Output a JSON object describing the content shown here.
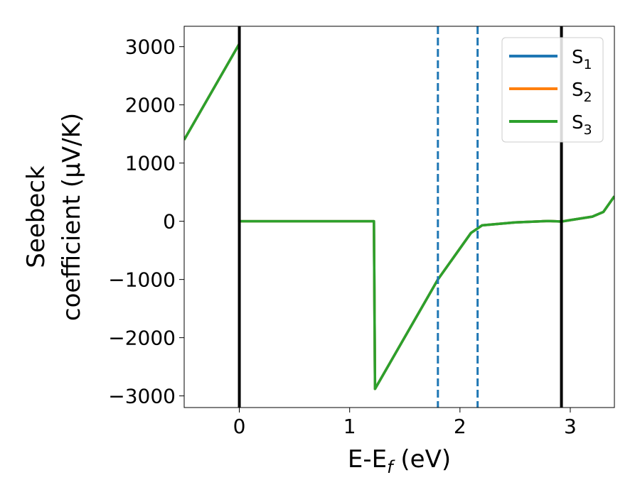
{
  "chart_data": {
    "type": "line",
    "title": "",
    "xlabel": {
      "main": "E-E",
      "sub": "f",
      "tail": " (eV)"
    },
    "ylabel": {
      "line1": "Seebeck",
      "line2": "coefficient  (μV/K)"
    },
    "xlim": [
      -0.5,
      3.4
    ],
    "ylim": [
      -3200,
      3350
    ],
    "x_ticks": [
      0,
      1,
      2,
      3
    ],
    "x_tick_labels": [
      "0",
      "1",
      "2",
      "3"
    ],
    "y_ticks": [
      -3000,
      -2000,
      -1000,
      0,
      1000,
      2000,
      3000
    ],
    "y_tick_labels": [
      "−3000",
      "−2000",
      "−1000",
      "0",
      "1000",
      "2000",
      "3000"
    ],
    "legend_position": "top-right",
    "series": [
      {
        "name": "S",
        "sub": "1",
        "color": "#1f77b4",
        "x": [
          -0.5,
          0.0,
          0.0,
          1.22,
          1.23,
          1.8,
          2.1,
          2.2,
          2.5,
          2.8,
          2.92,
          3.0,
          3.2,
          3.3,
          3.4
        ],
        "y": [
          1400,
          3050,
          0,
          0,
          -2880,
          -1000,
          -200,
          -70,
          -20,
          5,
          -5,
          20,
          80,
          160,
          430
        ]
      },
      {
        "name": "S",
        "sub": "2",
        "color": "#ff7f0e",
        "x": [
          -0.5,
          0.0,
          0.0,
          1.22,
          1.23,
          1.8,
          2.1,
          2.2,
          2.5,
          2.8,
          2.92,
          3.0,
          3.2,
          3.3,
          3.4
        ],
        "y": [
          1400,
          3050,
          0,
          0,
          -2880,
          -1000,
          -200,
          -70,
          -20,
          5,
          -5,
          20,
          80,
          160,
          430
        ]
      },
      {
        "name": "S",
        "sub": "3",
        "color": "#2ca02c",
        "x": [
          -0.5,
          0.0,
          0.0,
          1.22,
          1.23,
          1.8,
          2.1,
          2.2,
          2.5,
          2.8,
          2.92,
          3.0,
          3.2,
          3.3,
          3.4
        ],
        "y": [
          1400,
          3050,
          0,
          0,
          -2880,
          -1000,
          -200,
          -70,
          -20,
          5,
          -5,
          20,
          80,
          160,
          430
        ]
      }
    ],
    "vlines": [
      {
        "x": 0.0,
        "style": "solid",
        "color": "#000000"
      },
      {
        "x": 2.92,
        "style": "solid",
        "color": "#000000"
      },
      {
        "x": 1.8,
        "style": "dashed",
        "color": "#1f77b4"
      },
      {
        "x": 2.16,
        "style": "dashed",
        "color": "#1f77b4"
      }
    ]
  }
}
